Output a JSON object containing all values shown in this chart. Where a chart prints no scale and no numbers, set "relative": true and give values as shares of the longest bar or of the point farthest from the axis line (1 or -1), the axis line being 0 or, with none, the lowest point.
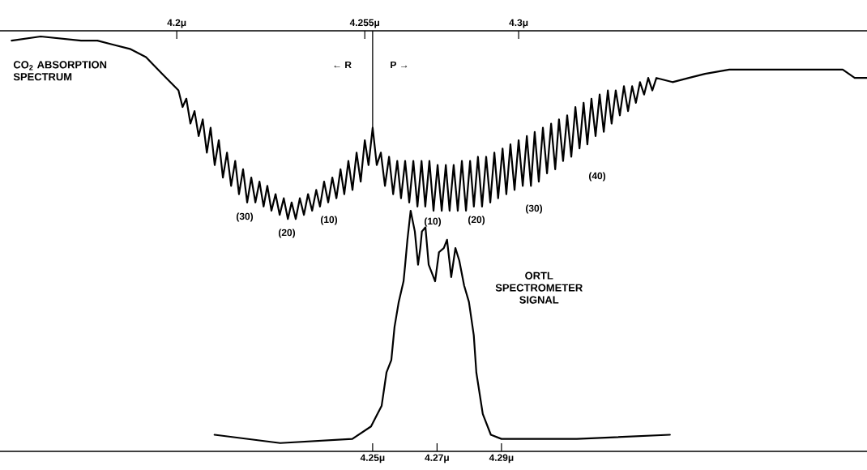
{
  "chart_data": {
    "type": "line",
    "relative": true,
    "xlim": [
      4.1343,
      4.4035
    ],
    "xticks": [
      {
        "value": 4.25,
        "label": "4.25μ"
      },
      {
        "value": 4.27,
        "label": "4.27μ"
      },
      {
        "value": 4.29,
        "label": "4.29μ"
      }
    ],
    "x2lim": [
      4.1483,
      4.4019
    ],
    "x2ticks": [
      {
        "value": 4.2,
        "label": "4.2μ"
      },
      {
        "value": 4.255,
        "label": "4.255μ"
      },
      {
        "value": 4.3,
        "label": "4.3μ"
      }
    ],
    "series": [
      {
        "name": "CO$_{2}$ ABSORPTION SPECTRUM",
        "color": "#000000",
        "axis": "x2",
        "x": [
          4.1517,
          4.1602,
          4.172,
          4.1768,
          4.1815,
          4.1863,
          4.191,
          4.1957,
          4.1981,
          4.1993,
          4.2005,
          4.2017,
          4.2028,
          4.204,
          4.2052,
          4.2064,
          4.2076,
          4.2088,
          4.2099,
          4.2111,
          4.2123,
          4.2135,
          4.2147,
          4.2159,
          4.2171,
          4.2182,
          4.2194,
          4.2206,
          4.2218,
          4.223,
          4.2242,
          4.2254,
          4.2265,
          4.2277,
          4.2289,
          4.2301,
          4.2313,
          4.2325,
          4.2336,
          4.2348,
          4.236,
          4.2372,
          4.2384,
          4.2396,
          4.2408,
          4.2419,
          4.2431,
          4.2443,
          4.2455,
          4.2467,
          4.2479,
          4.249,
          4.2502,
          4.2514,
          4.2526,
          4.2538,
          4.255,
          4.2561,
          4.2573,
          4.2585,
          4.2597,
          4.2609,
          4.2621,
          4.2633,
          4.2645,
          4.2656,
          4.2668,
          4.268,
          4.2692,
          4.2704,
          4.2716,
          4.2727,
          4.2739,
          4.2751,
          4.2763,
          4.2775,
          4.2787,
          4.2798,
          4.281,
          4.2822,
          4.2834,
          4.2846,
          4.2858,
          4.2869,
          4.2881,
          4.2893,
          4.2905,
          4.2917,
          4.2929,
          4.294,
          4.2953,
          4.2964,
          4.2976,
          4.2988,
          4.3,
          4.3012,
          4.3024,
          4.3036,
          4.3047,
          4.3059,
          4.3071,
          4.3083,
          4.3095,
          4.3107,
          4.3118,
          4.313,
          4.3142,
          4.3154,
          4.3166,
          4.3178,
          4.319,
          4.3201,
          4.3213,
          4.3225,
          4.3237,
          4.3249,
          4.3261,
          4.3272,
          4.3284,
          4.3296,
          4.3308,
          4.332,
          4.3332,
          4.3343,
          4.3355,
          4.3367,
          4.3379,
          4.3391,
          4.3403,
          4.345,
          4.3498,
          4.3545,
          4.3616,
          4.3711,
          4.3806,
          4.39,
          4.3948,
          4.3983,
          4.4019
        ],
        "values": [
          0.99,
          1.0,
          0.99,
          0.99,
          0.98,
          0.97,
          0.95,
          0.91,
          0.89,
          0.88,
          0.87,
          0.83,
          0.85,
          0.79,
          0.82,
          0.76,
          0.8,
          0.72,
          0.78,
          0.69,
          0.75,
          0.66,
          0.72,
          0.64,
          0.7,
          0.62,
          0.68,
          0.6,
          0.66,
          0.6,
          0.65,
          0.59,
          0.64,
          0.58,
          0.62,
          0.57,
          0.61,
          0.56,
          0.6,
          0.56,
          0.61,
          0.57,
          0.62,
          0.58,
          0.63,
          0.59,
          0.65,
          0.6,
          0.66,
          0.61,
          0.68,
          0.62,
          0.7,
          0.63,
          0.72,
          0.65,
          0.75,
          0.69,
          0.78,
          0.69,
          0.72,
          0.64,
          0.71,
          0.62,
          0.7,
          0.61,
          0.7,
          0.6,
          0.7,
          0.59,
          0.7,
          0.59,
          0.7,
          0.58,
          0.69,
          0.58,
          0.69,
          0.58,
          0.69,
          0.58,
          0.7,
          0.58,
          0.7,
          0.59,
          0.71,
          0.59,
          0.71,
          0.6,
          0.72,
          0.61,
          0.73,
          0.62,
          0.74,
          0.63,
          0.75,
          0.64,
          0.76,
          0.64,
          0.77,
          0.65,
          0.78,
          0.67,
          0.79,
          0.68,
          0.8,
          0.7,
          0.81,
          0.71,
          0.83,
          0.73,
          0.84,
          0.74,
          0.85,
          0.76,
          0.86,
          0.77,
          0.87,
          0.79,
          0.87,
          0.81,
          0.88,
          0.82,
          0.88,
          0.84,
          0.89,
          0.86,
          0.9,
          0.87,
          0.9,
          0.89,
          0.9,
          0.91,
          0.92,
          0.92,
          0.92,
          0.92,
          0.92,
          0.9,
          0.9
        ]
      },
      {
        "name": "ORTL SPECTROMETER SIGNAL",
        "color": "#000000",
        "x": [
          4.2009,
          4.2213,
          4.2437,
          4.2495,
          4.2528,
          4.2543,
          4.2558,
          4.2568,
          4.2581,
          4.2596,
          4.2601,
          4.2608,
          4.2618,
          4.2631,
          4.2641,
          4.2648,
          4.2653,
          4.2664,
          4.2674,
          4.2684,
          4.2694,
          4.2706,
          4.2721,
          4.2731,
          4.2744,
          4.2757,
          4.2769,
          4.2784,
          4.2799,
          4.2814,
          4.2822,
          4.2842,
          4.2867,
          4.29,
          4.3134,
          4.3423
        ],
        "values": [
          0.04,
          0.02,
          0.03,
          0.06,
          0.11,
          0.19,
          0.22,
          0.3,
          0.36,
          0.41,
          0.45,
          0.51,
          0.58,
          0.53,
          0.45,
          0.49,
          0.53,
          0.54,
          0.45,
          0.43,
          0.41,
          0.48,
          0.49,
          0.51,
          0.42,
          0.49,
          0.46,
          0.4,
          0.36,
          0.28,
          0.19,
          0.09,
          0.04,
          0.03,
          0.03,
          0.04
        ]
      }
    ],
    "ref_lines": [
      {
        "axis": "x",
        "value": 4.25,
        "color": "#000000"
      }
    ],
    "annotations": [
      "(30)",
      "(20)",
      "(10)",
      "(10)",
      "(20)",
      "(30)",
      "(40)",
      "← R",
      "P →"
    ]
  }
}
